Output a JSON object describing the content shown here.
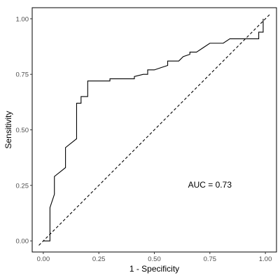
{
  "chart_data": {
    "type": "line",
    "xlabel": "1 - Specificity",
    "ylabel": "Sensitivity",
    "xlim": [
      -0.05,
      1.05
    ],
    "ylim": [
      -0.05,
      1.05
    ],
    "xticks": [
      0.0,
      0.25,
      0.5,
      0.75,
      1.0
    ],
    "xtick_labels": [
      "0.00",
      "0.25",
      "0.50",
      "0.75",
      "1.00"
    ],
    "yticks": [
      0.0,
      0.25,
      0.5,
      0.75,
      1.0
    ],
    "ytick_labels": [
      "0.00",
      "0.25",
      "0.50",
      "0.75",
      "1.00"
    ],
    "grid": false,
    "annotation": {
      "text": "AUC = 0.73",
      "x": 0.75,
      "y": 0.25
    },
    "series": [
      {
        "style": "solid",
        "x": [
          0.0,
          0.03,
          0.03,
          0.05,
          0.05,
          0.1,
          0.1,
          0.15,
          0.15,
          0.17,
          0.17,
          0.2,
          0.2,
          0.3,
          0.3,
          0.41,
          0.41,
          0.45,
          0.47,
          0.47,
          0.5,
          0.53,
          0.56,
          0.56,
          0.61,
          0.63,
          0.66,
          0.66,
          0.69,
          0.72,
          0.75,
          0.81,
          0.84,
          0.97,
          0.97,
          0.99,
          0.99
        ],
        "y": [
          0.0,
          0.0,
          0.15,
          0.21,
          0.29,
          0.33,
          0.42,
          0.46,
          0.62,
          0.62,
          0.65,
          0.65,
          0.72,
          0.72,
          0.73,
          0.73,
          0.74,
          0.75,
          0.75,
          0.77,
          0.77,
          0.78,
          0.79,
          0.81,
          0.81,
          0.83,
          0.84,
          0.85,
          0.85,
          0.87,
          0.89,
          0.89,
          0.91,
          0.91,
          0.94,
          0.94,
          1.0
        ]
      },
      {
        "style": "dashed",
        "x": [
          -0.02,
          1.02
        ],
        "y": [
          -0.02,
          1.02
        ]
      }
    ]
  }
}
